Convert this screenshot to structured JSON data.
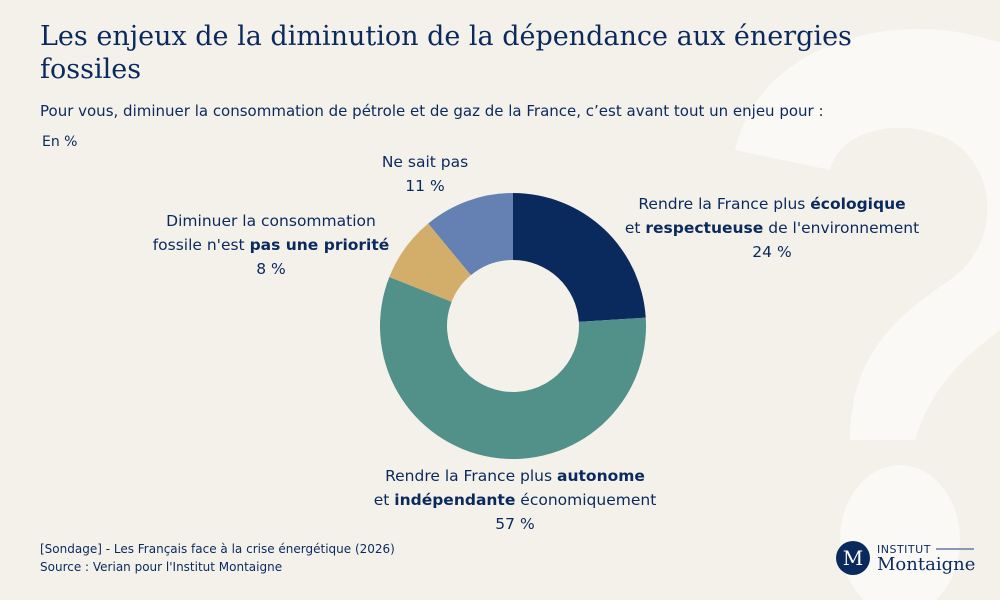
{
  "title": "Les enjeux de la diminution de la dépendance aux énergies fossiles",
  "subtitle": "Pour vous, diminuer la consommation de pétrole et de gaz de la France, c’est avant tout un enjeu pour :",
  "unit": "En %",
  "chart_data": {
    "type": "pie",
    "donut": true,
    "slices": [
      {
        "label": "Rendre la France plus écologique et respectueuse de l'environnement",
        "value": 24,
        "value_label": "24 %",
        "color": "#0a2a5e"
      },
      {
        "label": "Rendre la France plus autonome et indépendante économiquement",
        "value": 57,
        "value_label": "57 %",
        "color": "#52908a"
      },
      {
        "label": "Diminuer la consommation fossile n'est pas une priorité",
        "value": 8,
        "value_label": "8 %",
        "color": "#d3ae6b"
      },
      {
        "label": "Ne sait pas",
        "value": 11,
        "value_label": "11 %",
        "color": "#6580b2"
      }
    ]
  },
  "labels": {
    "eco": {
      "l1a": "Rendre la France plus ",
      "l1b": "écologique",
      "l2a": "et ",
      "l2b": "respectueuse",
      "l2c": " de l'environnement"
    },
    "auto": {
      "l1a": "Rendre la France plus ",
      "l1b": "autonome",
      "l2a": "et ",
      "l2b": "indépendante",
      "l2c": " économiquement"
    },
    "prio": {
      "l1": "Diminuer la consommation",
      "l2a": "fossile n'est ",
      "l2b": "pas une priorité"
    },
    "nsp": {
      "l1": "Ne sait pas"
    }
  },
  "footer": {
    "line1": "[Sondage] - Les Français face à la crise énergétique (2026)",
    "line2": "Source : Verian pour l'Institut Montaigne"
  },
  "logo": {
    "mark": "M",
    "top": "INSTITUT",
    "name": "Montaigne"
  }
}
